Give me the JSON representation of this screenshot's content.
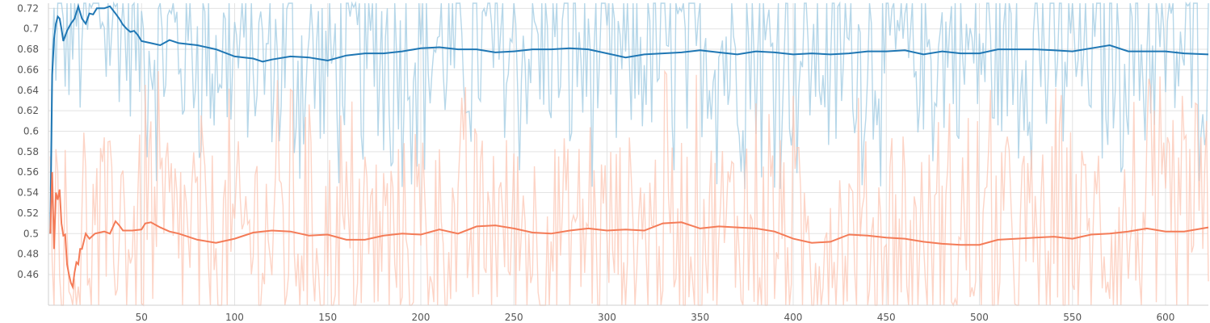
{
  "chart_data": {
    "type": "line",
    "title": "",
    "xlabel": "",
    "ylabel": "",
    "xlim": [
      0,
      623
    ],
    "ylim": [
      0.43,
      0.725
    ],
    "grid": true,
    "x_ticks": [
      50,
      100,
      150,
      200,
      250,
      300,
      350,
      400,
      450,
      500,
      550,
      600
    ],
    "y_ticks": [
      0.46,
      0.48,
      0.5,
      0.52,
      0.54,
      0.56,
      0.58,
      0.6,
      0.62,
      0.64,
      0.66,
      0.68,
      0.7,
      0.72
    ],
    "series": [
      {
        "color": "#1f77b4",
        "raw_color": "#9ecae1",
        "smoothed": [
          [
            1,
            0.5
          ],
          [
            2,
            0.655
          ],
          [
            3,
            0.69
          ],
          [
            4,
            0.705
          ],
          [
            5,
            0.712
          ],
          [
            6,
            0.71
          ],
          [
            7,
            0.7
          ],
          [
            8,
            0.688
          ],
          [
            10,
            0.698
          ],
          [
            12,
            0.705
          ],
          [
            14,
            0.71
          ],
          [
            16,
            0.722
          ],
          [
            18,
            0.71
          ],
          [
            20,
            0.705
          ],
          [
            22,
            0.715
          ],
          [
            24,
            0.714
          ],
          [
            26,
            0.72
          ],
          [
            30,
            0.72
          ],
          [
            33,
            0.722
          ],
          [
            36,
            0.715
          ],
          [
            38,
            0.71
          ],
          [
            40,
            0.704
          ],
          [
            42,
            0.7
          ],
          [
            44,
            0.697
          ],
          [
            46,
            0.698
          ],
          [
            48,
            0.694
          ],
          [
            50,
            0.688
          ],
          [
            55,
            0.686
          ],
          [
            60,
            0.684
          ],
          [
            65,
            0.689
          ],
          [
            70,
            0.686
          ],
          [
            80,
            0.684
          ],
          [
            90,
            0.68
          ],
          [
            100,
            0.673
          ],
          [
            110,
            0.671
          ],
          [
            115,
            0.668
          ],
          [
            120,
            0.67
          ],
          [
            130,
            0.673
          ],
          [
            140,
            0.672
          ],
          [
            150,
            0.669
          ],
          [
            160,
            0.674
          ],
          [
            170,
            0.676
          ],
          [
            180,
            0.676
          ],
          [
            190,
            0.678
          ],
          [
            200,
            0.681
          ],
          [
            210,
            0.682
          ],
          [
            220,
            0.68
          ],
          [
            230,
            0.68
          ],
          [
            240,
            0.677
          ],
          [
            250,
            0.678
          ],
          [
            260,
            0.68
          ],
          [
            270,
            0.68
          ],
          [
            280,
            0.681
          ],
          [
            290,
            0.68
          ],
          [
            300,
            0.676
          ],
          [
            310,
            0.672
          ],
          [
            320,
            0.675
          ],
          [
            330,
            0.676
          ],
          [
            340,
            0.677
          ],
          [
            350,
            0.679
          ],
          [
            360,
            0.677
          ],
          [
            370,
            0.675
          ],
          [
            380,
            0.678
          ],
          [
            390,
            0.677
          ],
          [
            400,
            0.675
          ],
          [
            410,
            0.676
          ],
          [
            420,
            0.675
          ],
          [
            430,
            0.676
          ],
          [
            440,
            0.678
          ],
          [
            450,
            0.678
          ],
          [
            460,
            0.679
          ],
          [
            470,
            0.675
          ],
          [
            480,
            0.678
          ],
          [
            490,
            0.676
          ],
          [
            500,
            0.676
          ],
          [
            510,
            0.68
          ],
          [
            520,
            0.68
          ],
          [
            530,
            0.68
          ],
          [
            540,
            0.679
          ],
          [
            550,
            0.678
          ],
          [
            560,
            0.681
          ],
          [
            570,
            0.684
          ],
          [
            580,
            0.678
          ],
          [
            590,
            0.678
          ],
          [
            600,
            0.678
          ],
          [
            610,
            0.676
          ],
          [
            623,
            0.675
          ]
        ]
      },
      {
        "color": "#f47b57",
        "raw_color": "#fcc5b3",
        "smoothed": [
          [
            1,
            0.5
          ],
          [
            2,
            0.56
          ],
          [
            3,
            0.485
          ],
          [
            4,
            0.54
          ],
          [
            5,
            0.533
          ],
          [
            6,
            0.543
          ],
          [
            7,
            0.51
          ],
          [
            8,
            0.498
          ],
          [
            9,
            0.499
          ],
          [
            10,
            0.47
          ],
          [
            11,
            0.46
          ],
          [
            12,
            0.452
          ],
          [
            13,
            0.448
          ],
          [
            14,
            0.462
          ],
          [
            15,
            0.472
          ],
          [
            16,
            0.47
          ],
          [
            17,
            0.485
          ],
          [
            18,
            0.485
          ],
          [
            20,
            0.5
          ],
          [
            22,
            0.495
          ],
          [
            25,
            0.5
          ],
          [
            30,
            0.502
          ],
          [
            33,
            0.5
          ],
          [
            36,
            0.512
          ],
          [
            38,
            0.508
          ],
          [
            40,
            0.503
          ],
          [
            45,
            0.503
          ],
          [
            50,
            0.504
          ],
          [
            52,
            0.51
          ],
          [
            55,
            0.511
          ],
          [
            60,
            0.506
          ],
          [
            65,
            0.502
          ],
          [
            70,
            0.5
          ],
          [
            80,
            0.494
          ],
          [
            90,
            0.491
          ],
          [
            100,
            0.495
          ],
          [
            110,
            0.501
          ],
          [
            120,
            0.503
          ],
          [
            130,
            0.502
          ],
          [
            140,
            0.498
          ],
          [
            150,
            0.499
          ],
          [
            160,
            0.494
          ],
          [
            170,
            0.494
          ],
          [
            180,
            0.498
          ],
          [
            190,
            0.5
          ],
          [
            200,
            0.499
          ],
          [
            210,
            0.504
          ],
          [
            220,
            0.5
          ],
          [
            230,
            0.507
          ],
          [
            240,
            0.508
          ],
          [
            250,
            0.505
          ],
          [
            260,
            0.501
          ],
          [
            270,
            0.5
          ],
          [
            280,
            0.503
          ],
          [
            290,
            0.505
          ],
          [
            300,
            0.503
          ],
          [
            310,
            0.504
          ],
          [
            320,
            0.503
          ],
          [
            330,
            0.51
          ],
          [
            340,
            0.511
          ],
          [
            350,
            0.505
          ],
          [
            360,
            0.507
          ],
          [
            370,
            0.506
          ],
          [
            380,
            0.505
          ],
          [
            390,
            0.502
          ],
          [
            400,
            0.495
          ],
          [
            410,
            0.491
          ],
          [
            420,
            0.492
          ],
          [
            430,
            0.499
          ],
          [
            440,
            0.498
          ],
          [
            450,
            0.496
          ],
          [
            460,
            0.495
          ],
          [
            470,
            0.492
          ],
          [
            480,
            0.49
          ],
          [
            490,
            0.489
          ],
          [
            500,
            0.489
          ],
          [
            510,
            0.494
          ],
          [
            520,
            0.495
          ],
          [
            530,
            0.496
          ],
          [
            540,
            0.497
          ],
          [
            550,
            0.495
          ],
          [
            560,
            0.499
          ],
          [
            570,
            0.5
          ],
          [
            580,
            0.502
          ],
          [
            590,
            0.505
          ],
          [
            600,
            0.502
          ],
          [
            610,
            0.502
          ],
          [
            623,
            0.506
          ]
        ]
      }
    ]
  }
}
